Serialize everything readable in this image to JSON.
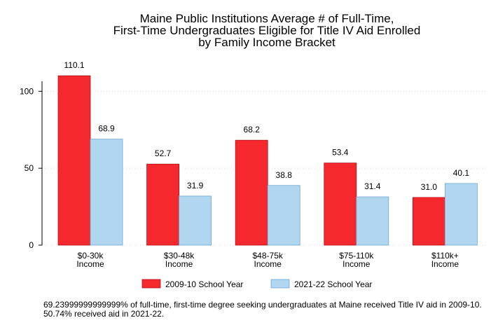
{
  "chart_data": {
    "type": "bar",
    "title_lines": [
      "Maine Public Institutions Average # of Full-Time,",
      "First-Time Undergraduates Eligible for Title IV Aid Enrolled",
      "by Family Income Bracket"
    ],
    "categories": [
      [
        "$0-30k",
        "Income"
      ],
      [
        "$30-48k",
        "Income"
      ],
      [
        "$48-75k",
        "Income"
      ],
      [
        "$75-110k",
        "Income"
      ],
      [
        "$110k+",
        "Income"
      ]
    ],
    "series": [
      {
        "name": "2009-10 School Year",
        "color": "#f5282d",
        "stroke": "#b01016",
        "values": [
          110.1,
          52.7,
          68.2,
          53.4,
          31.0
        ],
        "labels": [
          "110.1",
          "52.7",
          "68.2",
          "53.4",
          "31.0"
        ]
      },
      {
        "name": "2021-22 School Year",
        "color": "#b1d6f0",
        "stroke": "#6fa9d4",
        "values": [
          68.9,
          31.9,
          38.8,
          31.4,
          40.1
        ],
        "labels": [
          "68.9",
          "31.9",
          "38.8",
          "31.4",
          "40.1"
        ]
      }
    ],
    "yticks": [
      0,
      50,
      100
    ],
    "ylim": [
      0,
      117
    ],
    "grid": "horizontal dotted",
    "legend_position": "bottom"
  },
  "footnote": "69.23999999999999% of full-time, first-time degree seeking undergraduates at Maine received Title IV aid in 2009-10. 50.74% received aid in 2021-22."
}
